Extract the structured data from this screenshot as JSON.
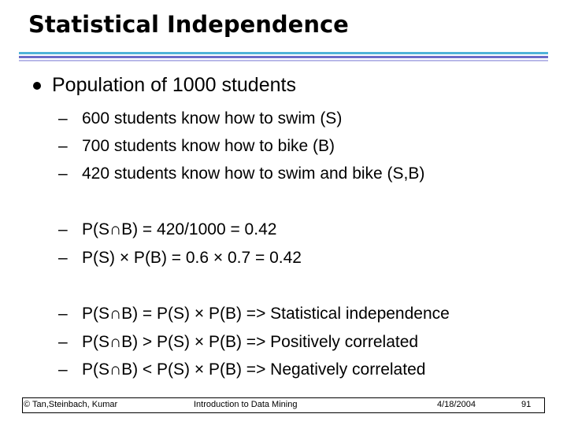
{
  "title": "Statistical Independence",
  "bullet": "Population of 1000 students",
  "group1": [
    "600 students know how to swim (S)",
    "700 students know how to bike (B)",
    "420 students know how to swim and bike (S,B)"
  ],
  "group2": [
    "P(S∩B) = 420/1000 = 0.42",
    "P(S) × P(B) = 0.6 × 0.7 = 0.42"
  ],
  "group3": [
    "P(S∩B) = P(S) × P(B) => Statistical independence",
    "P(S∩B) > P(S) × P(B) => Positively correlated",
    "P(S∩B) < P(S) × P(B) => Negatively correlated"
  ],
  "dash": "–",
  "footer": {
    "copyright": "© Tan,Steinbach, Kumar",
    "course": "Introduction to Data Mining",
    "date": "4/18/2004",
    "page": "91"
  },
  "colors": {
    "rule_top": "#4fb3d9",
    "rule_mid": "#6b6bc8",
    "rule_low": "#b8b8e8"
  }
}
